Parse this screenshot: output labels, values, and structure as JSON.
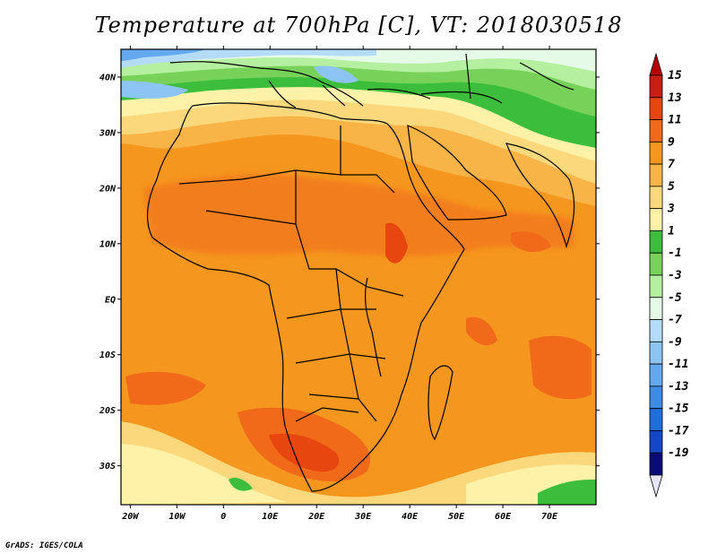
{
  "title": "Temperature at 700hPa [C], VT: 2018030518",
  "credit": "GrADS: IGES/COLA",
  "map": {
    "lon_range": [
      -22,
      80
    ],
    "lat_range": [
      -37,
      45
    ],
    "lat_ticks": [
      {
        "value": 40,
        "label": "40N"
      },
      {
        "value": 30,
        "label": "30N"
      },
      {
        "value": 20,
        "label": "20N"
      },
      {
        "value": 10,
        "label": "10N"
      },
      {
        "value": 0,
        "label": "EQ"
      },
      {
        "value": -10,
        "label": "10S"
      },
      {
        "value": -20,
        "label": "20S"
      },
      {
        "value": -30,
        "label": "30S"
      }
    ],
    "lon_ticks": [
      {
        "value": -20,
        "label": "20W"
      },
      {
        "value": -10,
        "label": "10W"
      },
      {
        "value": 0,
        "label": "0"
      },
      {
        "value": 10,
        "label": "10E"
      },
      {
        "value": 20,
        "label": "20E"
      },
      {
        "value": 30,
        "label": "30E"
      },
      {
        "value": 40,
        "label": "40E"
      },
      {
        "value": 50,
        "label": "50E"
      },
      {
        "value": 60,
        "label": "60E"
      },
      {
        "value": 70,
        "label": "70E"
      }
    ]
  },
  "colorbar": {
    "levels": [
      {
        "label": "15",
        "color": "#c81e14"
      },
      {
        "label": "13",
        "color": "#e8460f"
      },
      {
        "label": "11",
        "color": "#f06a1a"
      },
      {
        "label": "9",
        "color": "#f5961e"
      },
      {
        "label": "7",
        "color": "#f8b446"
      },
      {
        "label": "5",
        "color": "#fbd87c"
      },
      {
        "label": "3",
        "color": "#fdf2a8"
      },
      {
        "label": "1",
        "color": "#3cbe3c"
      },
      {
        "label": "-1",
        "color": "#78d25a"
      },
      {
        "label": "-3",
        "color": "#b4f0a0"
      },
      {
        "label": "-5",
        "color": "#e6fae8"
      },
      {
        "label": "-7",
        "color": "#b4dcf8"
      },
      {
        "label": "-9",
        "color": "#8cc4f4"
      },
      {
        "label": "-11",
        "color": "#64a8f0"
      },
      {
        "label": "-13",
        "color": "#3c8ce6"
      },
      {
        "label": "-15",
        "color": "#1e6edc"
      },
      {
        "label": "-17",
        "color": "#1446c8"
      },
      {
        "label": "-19",
        "color": "#0a0a78"
      }
    ],
    "top_arrow_color": "#b40000",
    "bottom_arrow_color": "#e6e6fa"
  }
}
